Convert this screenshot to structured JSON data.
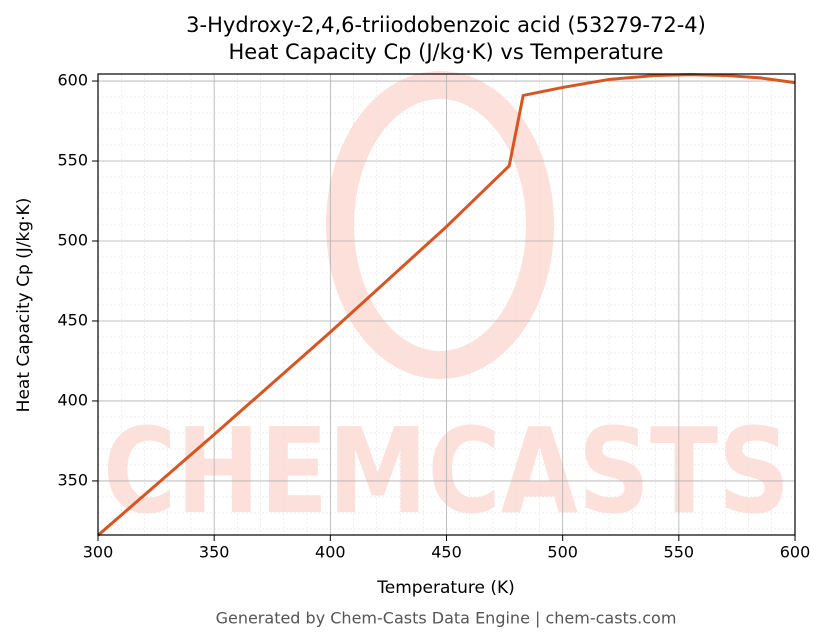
{
  "chart_data": {
    "type": "line",
    "title": "3-Hydroxy-2,4,6-triiodobenzoic acid (53279-72-4)",
    "subtitle": "Heat Capacity Cp (J/kg·K) vs Temperature",
    "x_label": "Temperature (K)",
    "y_label": "Heat Capacity Cp (J/kg·K)",
    "footer": "Generated by Chem-Casts Data Engine | chem-casts.com",
    "watermark": "CHEMCASTS",
    "x": [
      300,
      350,
      400,
      450,
      477,
      483,
      500,
      520,
      540,
      555,
      570,
      585,
      600
    ],
    "series": [
      {
        "name": "Cp",
        "color": "#d95420",
        "values": [
          316,
          379,
          443,
          509,
          547,
          591,
          596,
          601,
          603.5,
          604,
          603.5,
          602,
          599
        ]
      }
    ],
    "xlim": [
      300,
      600
    ],
    "xticks": [
      300,
      350,
      400,
      450,
      500,
      550,
      600
    ],
    "ylim": [
      316.2,
      604.4
    ],
    "yticks": [
      350,
      400,
      450,
      500,
      550,
      600
    ],
    "grid": true
  }
}
